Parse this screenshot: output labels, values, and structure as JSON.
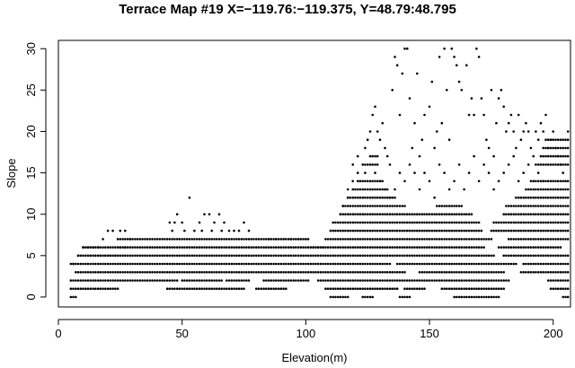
{
  "chart_data": {
    "type": "scatter",
    "title": "Terrace Map #19 X=−119.76:−119.375,  Y=48.79:48.795",
    "xlabel": "Elevation(m)",
    "ylabel": "Slope",
    "xlim": [
      0,
      207
    ],
    "ylim": [
      -1.2,
      31
    ],
    "xticks": [
      0,
      50,
      100,
      150,
      200
    ],
    "yticks": [
      0,
      5,
      10,
      15,
      20,
      25,
      30
    ],
    "grid": false,
    "bands": [
      {
        "y": 0,
        "x": [
          [
            5,
            7
          ],
          [
            110,
            117
          ],
          [
            123,
            127
          ],
          [
            138,
            142
          ],
          [
            160,
            178
          ],
          [
            204,
            207
          ]
        ]
      },
      {
        "y": 1,
        "x": [
          [
            5,
            24
          ],
          [
            44,
            75
          ],
          [
            80,
            92
          ],
          [
            108,
            137
          ],
          [
            140,
            148
          ],
          [
            155,
            180
          ],
          [
            199,
            207
          ]
        ]
      },
      {
        "y": 2,
        "x": [
          [
            5,
            48
          ],
          [
            50,
            66
          ],
          [
            68,
            77
          ],
          [
            83,
            101
          ],
          [
            105,
            182
          ],
          [
            198,
            207
          ]
        ]
      },
      {
        "y": 3,
        "x": [
          [
            7,
            140
          ],
          [
            146,
            180
          ],
          [
            187,
            207
          ]
        ]
      },
      {
        "y": 4,
        "x": [
          [
            5,
            134
          ],
          [
            137,
            185
          ],
          [
            188,
            207
          ]
        ]
      },
      {
        "y": 5,
        "x": [
          [
            8,
            176
          ],
          [
            180,
            207
          ]
        ]
      },
      {
        "y": 6,
        "x": [
          [
            10,
            172
          ],
          [
            178,
            203
          ]
        ]
      },
      {
        "y": 7,
        "x": [
          [
            24,
            101
          ],
          [
            108,
            175
          ],
          [
            182,
            207
          ]
        ]
      },
      {
        "y": 8,
        "x": [
          [
            110,
            171
          ],
          [
            175,
            207
          ]
        ]
      },
      {
        "y": 9,
        "x": [
          [
            111,
            170
          ],
          [
            176,
            207
          ]
        ]
      },
      {
        "y": 10,
        "x": [
          [
            114,
            167
          ],
          [
            180,
            207
          ]
        ]
      },
      {
        "y": 11,
        "x": [
          [
            115,
            140
          ],
          [
            153,
            163
          ],
          [
            181,
            207
          ]
        ]
      },
      {
        "y": 12,
        "x": [
          [
            117,
            136
          ],
          [
            185,
            207
          ]
        ]
      },
      {
        "y": 13,
        "x": [
          [
            119,
            133
          ],
          [
            189,
            207
          ]
        ]
      },
      {
        "y": 14,
        "x": [
          [
            121,
            131
          ],
          [
            191,
            207
          ]
        ]
      },
      {
        "y": 16,
        "x": [
          [
            124,
            129
          ],
          [
            193,
            207
          ]
        ]
      },
      {
        "y": 17,
        "x": [
          [
            127,
            129
          ],
          [
            195,
            207
          ]
        ]
      },
      {
        "y": 18,
        "x": [
          [
            196,
            207
          ]
        ]
      },
      {
        "y": 19,
        "x": [
          [
            197,
            207
          ]
        ]
      }
    ],
    "points": [
      [
        6,
        4
      ],
      [
        8,
        5
      ],
      [
        10,
        6
      ],
      [
        12,
        6
      ],
      [
        14,
        6
      ],
      [
        16,
        6
      ],
      [
        18,
        7
      ],
      [
        20,
        8
      ],
      [
        22,
        8
      ],
      [
        25,
        8
      ],
      [
        27,
        8
      ],
      [
        13,
        5
      ],
      [
        15,
        5
      ],
      [
        17,
        5
      ],
      [
        19,
        5
      ],
      [
        21,
        5
      ],
      [
        23,
        5
      ],
      [
        25,
        6
      ],
      [
        27,
        6
      ],
      [
        29,
        7
      ],
      [
        46,
        8
      ],
      [
        48,
        10
      ],
      [
        50,
        9
      ],
      [
        53,
        12
      ],
      [
        55,
        8
      ],
      [
        57,
        9
      ],
      [
        59,
        10
      ],
      [
        61,
        10
      ],
      [
        63,
        9
      ],
      [
        65,
        10
      ],
      [
        67,
        9
      ],
      [
        69,
        8
      ],
      [
        71,
        8
      ],
      [
        73,
        8
      ],
      [
        75,
        9
      ],
      [
        77,
        8
      ],
      [
        45,
        9
      ],
      [
        47,
        9
      ],
      [
        51,
        8
      ],
      [
        58,
        8
      ],
      [
        62,
        8
      ],
      [
        66,
        8
      ],
      [
        85,
        7
      ],
      [
        88,
        7
      ],
      [
        91,
        7
      ],
      [
        94,
        7
      ],
      [
        97,
        7
      ],
      [
        100,
        7
      ],
      [
        103,
        6
      ],
      [
        105,
        6
      ],
      [
        107,
        6
      ],
      [
        114,
        10
      ],
      [
        117,
        12
      ],
      [
        119,
        14
      ],
      [
        121,
        15
      ],
      [
        123,
        16
      ],
      [
        124,
        18
      ],
      [
        125,
        19
      ],
      [
        126,
        20
      ],
      [
        127,
        22
      ],
      [
        128,
        23
      ],
      [
        129,
        20
      ],
      [
        130,
        19
      ],
      [
        131,
        21
      ],
      [
        132,
        18
      ],
      [
        133,
        17
      ],
      [
        134,
        16
      ],
      [
        135,
        25
      ],
      [
        136,
        29
      ],
      [
        137,
        28
      ],
      [
        138,
        22
      ],
      [
        139,
        27
      ],
      [
        140,
        30
      ],
      [
        141,
        30
      ],
      [
        142,
        24
      ],
      [
        143,
        18
      ],
      [
        144,
        21
      ],
      [
        145,
        27
      ],
      [
        146,
        17
      ],
      [
        147,
        19
      ],
      [
        148,
        22
      ],
      [
        149,
        31
      ],
      [
        150,
        23
      ],
      [
        151,
        26
      ],
      [
        152,
        18
      ],
      [
        153,
        20
      ],
      [
        154,
        29
      ],
      [
        155,
        21
      ],
      [
        156,
        30
      ],
      [
        157,
        25
      ],
      [
        158,
        19
      ],
      [
        159,
        30
      ],
      [
        160,
        29
      ],
      [
        161,
        28
      ],
      [
        162,
        26
      ],
      [
        163,
        25
      ],
      [
        164,
        31
      ],
      [
        165,
        28
      ],
      [
        166,
        22
      ],
      [
        167,
        24
      ],
      [
        168,
        22
      ],
      [
        169,
        30
      ],
      [
        170,
        29
      ],
      [
        171,
        24
      ],
      [
        172,
        22
      ],
      [
        173,
        19
      ],
      [
        174,
        18
      ],
      [
        175,
        25
      ],
      [
        176,
        17
      ],
      [
        177,
        21
      ],
      [
        178,
        24
      ],
      [
        179,
        25
      ],
      [
        180,
        23
      ],
      [
        181,
        20
      ],
      [
        182,
        21
      ],
      [
        183,
        22
      ],
      [
        184,
        20
      ],
      [
        185,
        18
      ],
      [
        186,
        22
      ],
      [
        187,
        19
      ],
      [
        188,
        20
      ],
      [
        189,
        21
      ],
      [
        190,
        20
      ],
      [
        191,
        18
      ],
      [
        192,
        17
      ],
      [
        193,
        20
      ],
      [
        194,
        19
      ],
      [
        195,
        21
      ],
      [
        196,
        20
      ],
      [
        197,
        22
      ],
      [
        198,
        18
      ],
      [
        199,
        19
      ],
      [
        200,
        20
      ],
      [
        201,
        18
      ],
      [
        202,
        17
      ],
      [
        203,
        16
      ],
      [
        204,
        15
      ],
      [
        205,
        14
      ],
      [
        206,
        20
      ],
      [
        115,
        11
      ],
      [
        117,
        13
      ],
      [
        119,
        16
      ],
      [
        121,
        17
      ],
      [
        122,
        14
      ],
      [
        124,
        15
      ],
      [
        126,
        17
      ],
      [
        128,
        15
      ],
      [
        130,
        14
      ],
      [
        132,
        13
      ],
      [
        134,
        12
      ],
      [
        136,
        13
      ],
      [
        138,
        15
      ],
      [
        140,
        14
      ],
      [
        142,
        16
      ],
      [
        144,
        15
      ],
      [
        146,
        13
      ],
      [
        148,
        15
      ],
      [
        150,
        14
      ],
      [
        152,
        12
      ],
      [
        154,
        16
      ],
      [
        156,
        15
      ],
      [
        158,
        13
      ],
      [
        160,
        14
      ],
      [
        162,
        16
      ],
      [
        164,
        13
      ],
      [
        166,
        15
      ],
      [
        168,
        17
      ],
      [
        170,
        14
      ],
      [
        172,
        16
      ],
      [
        174,
        15
      ],
      [
        176,
        13
      ],
      [
        178,
        14
      ],
      [
        180,
        15
      ],
      [
        182,
        16
      ],
      [
        184,
        17
      ],
      [
        186,
        14
      ],
      [
        188,
        15
      ],
      [
        190,
        16
      ],
      [
        192,
        14
      ],
      [
        194,
        15
      ],
      [
        196,
        14
      ]
    ]
  }
}
